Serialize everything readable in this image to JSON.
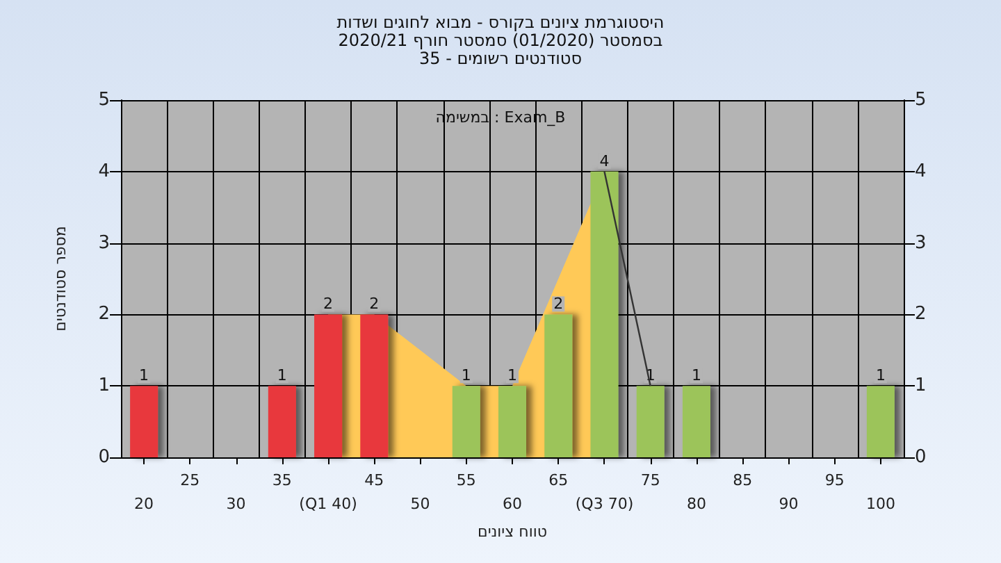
{
  "chart_data": {
    "type": "bar",
    "title": "היסטוגרמת ציונים בקורס - מבוא לחוגים ושדות",
    "subtitle": "בסמסטר (01/2020) סמסטר חורף 2020/21\nסטודנטים רשומים - 35",
    "xlabel": "טווח ציונים",
    "ylabel": "מספר סטודנטים",
    "annotations": [
      "במשימה : Exam_B"
    ],
    "categories": [
      "20",
      "25",
      "30",
      "35",
      "(Q1 40)",
      "45",
      "50",
      "55",
      "60",
      "65",
      "(Q3 70)",
      "75",
      "80",
      "85",
      "90",
      "95",
      "100"
    ],
    "series": [
      {
        "values": [
          1,
          0,
          0,
          1,
          2,
          2,
          0,
          1,
          1,
          2,
          4,
          1,
          1,
          0,
          0,
          0,
          1
        ],
        "colors": [
          "#e8383c",
          "#e8383c",
          "#e8383c",
          "#e8383c",
          "#e8383c",
          "#e8383c",
          "#e8383c",
          "#9cc45a",
          "#9cc45a",
          "#9cc45a",
          "#9cc45a",
          "#9cc45a",
          "#9cc45a",
          "#9cc45a",
          "#9cc45a",
          "#9cc45a",
          "#9cc45a"
        ],
        "value_labels": [
          "1",
          null,
          null,
          "1",
          "2",
          "2",
          null,
          "1",
          "1",
          "2",
          "4",
          "1",
          "1",
          null,
          null,
          null,
          "1"
        ]
      },
      {
        "type": "area",
        "color": "#ffc957",
        "x": [
          "(Q1 40)",
          "45",
          "55",
          "60",
          "(Q3 70)"
        ],
        "values": [
          2,
          2,
          1,
          1,
          4
        ]
      },
      {
        "type": "line",
        "color": "#333333",
        "x": [
          "(Q3 70)",
          "75"
        ],
        "values": [
          4,
          1
        ]
      }
    ],
    "ylim": [
      0,
      5
    ],
    "yticks": [
      0,
      1,
      2,
      3,
      4,
      5
    ],
    "y2lim": [
      0,
      5
    ],
    "y2ticks": [
      0,
      1,
      2,
      3,
      4,
      5
    ],
    "grid": true,
    "marker": "none"
  }
}
